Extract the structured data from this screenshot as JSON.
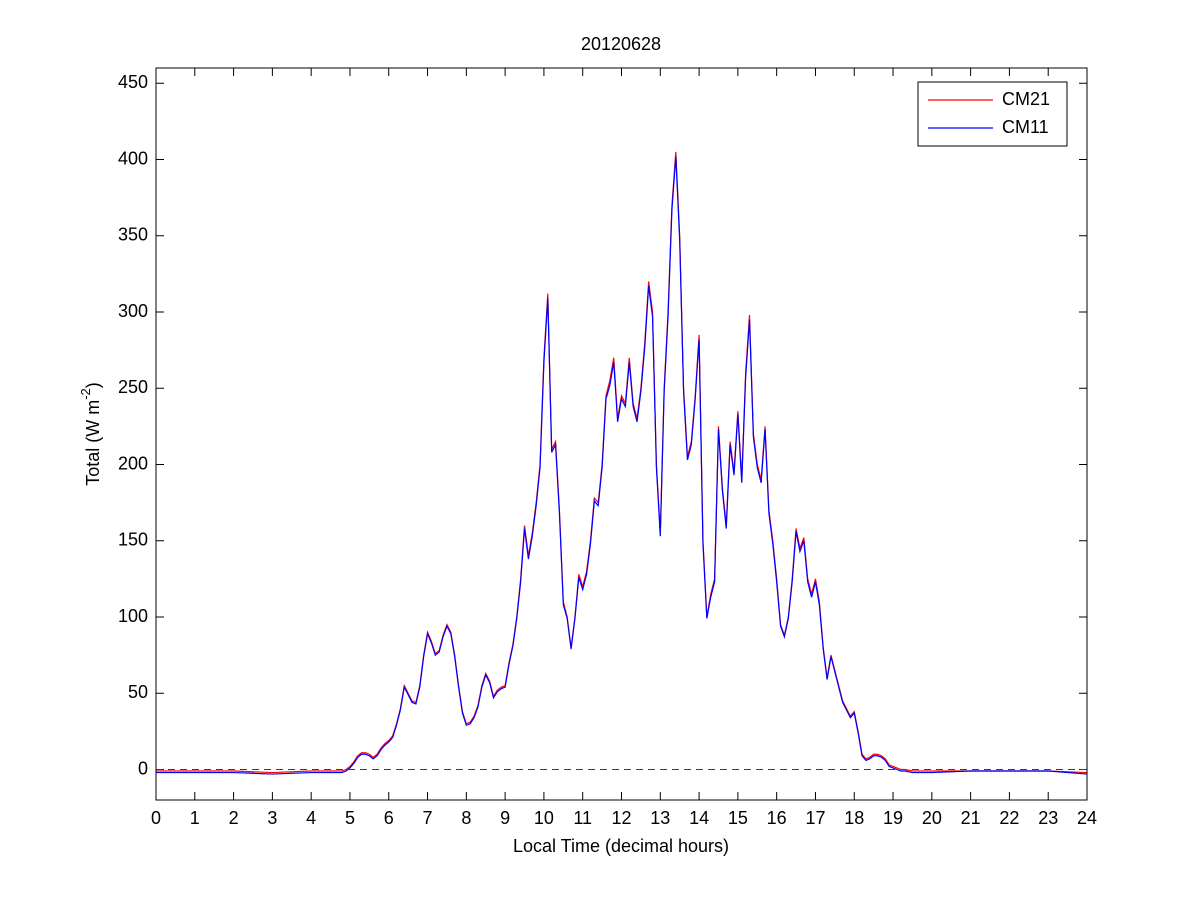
{
  "chart_data": {
    "type": "line",
    "title": "20120628",
    "x_label": "Local Time (decimal hours)",
    "y_label": {
      "text": "Total (W m",
      "sup": "-2",
      "end": ")"
    },
    "x": [
      0,
      1,
      2,
      3,
      4,
      4.8,
      4.9,
      5.0,
      5.1,
      5.2,
      5.3,
      5.4,
      5.5,
      5.6,
      5.7,
      5.8,
      5.9,
      6.0,
      6.1,
      6.2,
      6.3,
      6.4,
      6.5,
      6.6,
      6.7,
      6.8,
      6.9,
      7.0,
      7.1,
      7.2,
      7.3,
      7.4,
      7.5,
      7.6,
      7.7,
      7.8,
      7.9,
      8.0,
      8.1,
      8.2,
      8.3,
      8.4,
      8.5,
      8.6,
      8.7,
      8.8,
      8.9,
      9.0,
      9.1,
      9.2,
      9.3,
      9.4,
      9.5,
      9.6,
      9.7,
      9.8,
      9.9,
      10.0,
      10.1,
      10.2,
      10.3,
      10.4,
      10.5,
      10.6,
      10.7,
      10.8,
      10.9,
      11.0,
      11.1,
      11.2,
      11.3,
      11.4,
      11.5,
      11.6,
      11.7,
      11.8,
      11.9,
      12.0,
      12.1,
      12.2,
      12.3,
      12.4,
      12.5,
      12.6,
      12.7,
      12.8,
      12.9,
      13.0,
      13.1,
      13.2,
      13.3,
      13.4,
      13.5,
      13.6,
      13.7,
      13.8,
      13.9,
      14.0,
      14.1,
      14.2,
      14.3,
      14.4,
      14.5,
      14.6,
      14.7,
      14.8,
      14.9,
      15.0,
      15.1,
      15.2,
      15.3,
      15.4,
      15.5,
      15.6,
      15.7,
      15.8,
      15.9,
      16.0,
      16.1,
      16.2,
      16.3,
      16.4,
      16.5,
      16.6,
      16.7,
      16.8,
      16.9,
      17.0,
      17.1,
      17.2,
      17.3,
      17.4,
      17.5,
      17.6,
      17.7,
      17.8,
      17.9,
      18.0,
      18.1,
      18.2,
      18.3,
      18.4,
      18.5,
      18.6,
      18.7,
      18.8,
      18.9,
      19.0,
      19.1,
      19.2,
      19.3,
      19.5,
      20,
      21,
      22,
      23,
      24
    ],
    "series": [
      {
        "name": "CM21",
        "color": "#ff0000",
        "values": [
          -1,
          -1,
          -1,
          -2,
          -1,
          -1,
          0,
          2,
          5,
          9,
          11,
          11,
          10,
          8,
          10,
          14,
          17,
          19,
          22,
          30,
          40,
          55,
          50,
          45,
          44,
          55,
          75,
          90,
          84,
          76,
          78,
          88,
          95,
          90,
          75,
          55,
          38,
          30,
          31,
          35,
          42,
          55,
          63,
          58,
          48,
          52,
          54,
          55,
          70,
          82,
          100,
          125,
          160,
          140,
          155,
          175,
          200,
          270,
          312,
          210,
          215,
          170,
          110,
          100,
          80,
          100,
          128,
          120,
          130,
          150,
          178,
          175,
          200,
          245,
          255,
          270,
          230,
          245,
          240,
          270,
          240,
          230,
          250,
          280,
          320,
          300,
          200,
          155,
          250,
          300,
          370,
          405,
          350,
          250,
          205,
          215,
          245,
          285,
          150,
          100,
          115,
          125,
          225,
          185,
          160,
          215,
          195,
          235,
          190,
          260,
          298,
          220,
          200,
          190,
          225,
          170,
          150,
          125,
          95,
          88,
          100,
          125,
          158,
          145,
          152,
          125,
          115,
          125,
          110,
          80,
          60,
          75,
          65,
          55,
          45,
          40,
          35,
          38,
          25,
          10,
          7,
          8,
          10,
          10,
          9,
          7,
          3,
          2,
          1,
          0,
          0,
          -1,
          -1,
          -1,
          -1,
          -1,
          -2
        ]
      },
      {
        "name": "CM11",
        "color": "#0000ff",
        "values": [
          -2,
          -2,
          -2,
          -3,
          -2,
          -2,
          -1,
          1,
          4,
          8,
          10,
          10,
          9,
          7,
          9,
          13,
          16,
          18,
          21,
          29,
          39,
          54,
          49,
          44,
          43,
          54,
          74,
          89,
          83,
          75,
          77,
          87,
          94,
          89,
          74,
          54,
          37,
          29,
          30,
          34,
          41,
          54,
          62,
          57,
          47,
          51,
          53,
          54,
          69,
          81,
          99,
          123,
          158,
          138,
          153,
          173,
          198,
          267,
          309,
          208,
          213,
          168,
          108,
          99,
          79,
          99,
          126,
          118,
          128,
          148,
          176,
          173,
          198,
          243,
          252,
          267,
          228,
          243,
          238,
          267,
          238,
          228,
          248,
          277,
          317,
          297,
          198,
          153,
          248,
          297,
          367,
          402,
          347,
          248,
          203,
          213,
          243,
          282,
          148,
          99,
          113,
          123,
          223,
          183,
          158,
          213,
          193,
          233,
          188,
          257,
          295,
          218,
          198,
          188,
          223,
          168,
          148,
          123,
          94,
          87,
          99,
          123,
          156,
          143,
          150,
          123,
          113,
          123,
          108,
          79,
          59,
          74,
          64,
          54,
          44,
          39,
          34,
          37,
          24,
          9,
          6,
          7,
          9,
          9,
          8,
          6,
          2,
          1,
          0,
          -1,
          -1,
          -2,
          -2,
          -1,
          -1,
          -1,
          -3
        ]
      }
    ],
    "reference_line": {
      "value": 0,
      "color": "#cc0000"
    },
    "xlim": [
      0,
      24
    ],
    "xticks": [
      0,
      1,
      2,
      3,
      4,
      5,
      6,
      7,
      8,
      9,
      10,
      11,
      12,
      13,
      14,
      15,
      16,
      17,
      18,
      19,
      20,
      21,
      22,
      23,
      24
    ],
    "ylim": [
      -20,
      460
    ],
    "yticks": [
      0,
      50,
      100,
      150,
      200,
      250,
      300,
      350,
      400,
      450
    ],
    "legend": "top-right",
    "grid": false
  }
}
